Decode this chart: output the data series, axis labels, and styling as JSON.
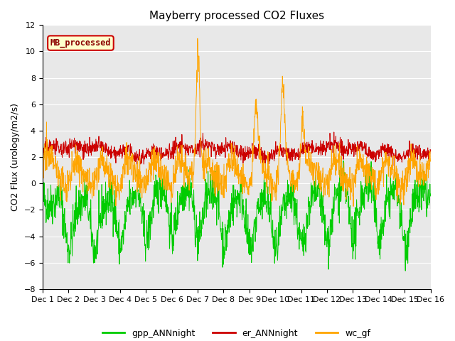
{
  "title": "Mayberry processed CO2 Fluxes",
  "ylabel": "CO2 Flux (urology/m2/s)",
  "ylim": [
    -8,
    12
  ],
  "yticks": [
    -8,
    -6,
    -4,
    -2,
    0,
    2,
    4,
    6,
    8,
    10,
    12
  ],
  "xlim": [
    0,
    15
  ],
  "xtick_labels": [
    "Dec 1",
    "Dec 2",
    "Dec 3",
    "Dec 4",
    "Dec 5",
    "Dec 6",
    "Dec 7",
    "Dec 8",
    "Dec 9",
    "Dec 10",
    "Dec 11",
    "Dec 12",
    "Dec 13",
    "Dec 14",
    "Dec 15",
    "Dec 16"
  ],
  "xtick_positions": [
    0,
    1,
    2,
    3,
    4,
    5,
    6,
    7,
    8,
    9,
    10,
    11,
    12,
    13,
    14,
    15
  ],
  "line_colors": {
    "gpp_ANNnight": "#00cc00",
    "er_ANNnight": "#cc0000",
    "wc_gf": "#ffa500"
  },
  "legend_label": "MB_processed",
  "legend_label_color": "#8b0000",
  "legend_box_facecolor": "#ffffcc",
  "legend_box_edgecolor": "#cc0000",
  "background_color": "#e8e8e8",
  "title_fontsize": 11,
  "axis_label_fontsize": 9,
  "tick_fontsize": 8,
  "legend_fontsize": 9,
  "n_points": 1440,
  "gpp_base": -1.0,
  "er_base": 2.5,
  "wc_base": 1.5
}
